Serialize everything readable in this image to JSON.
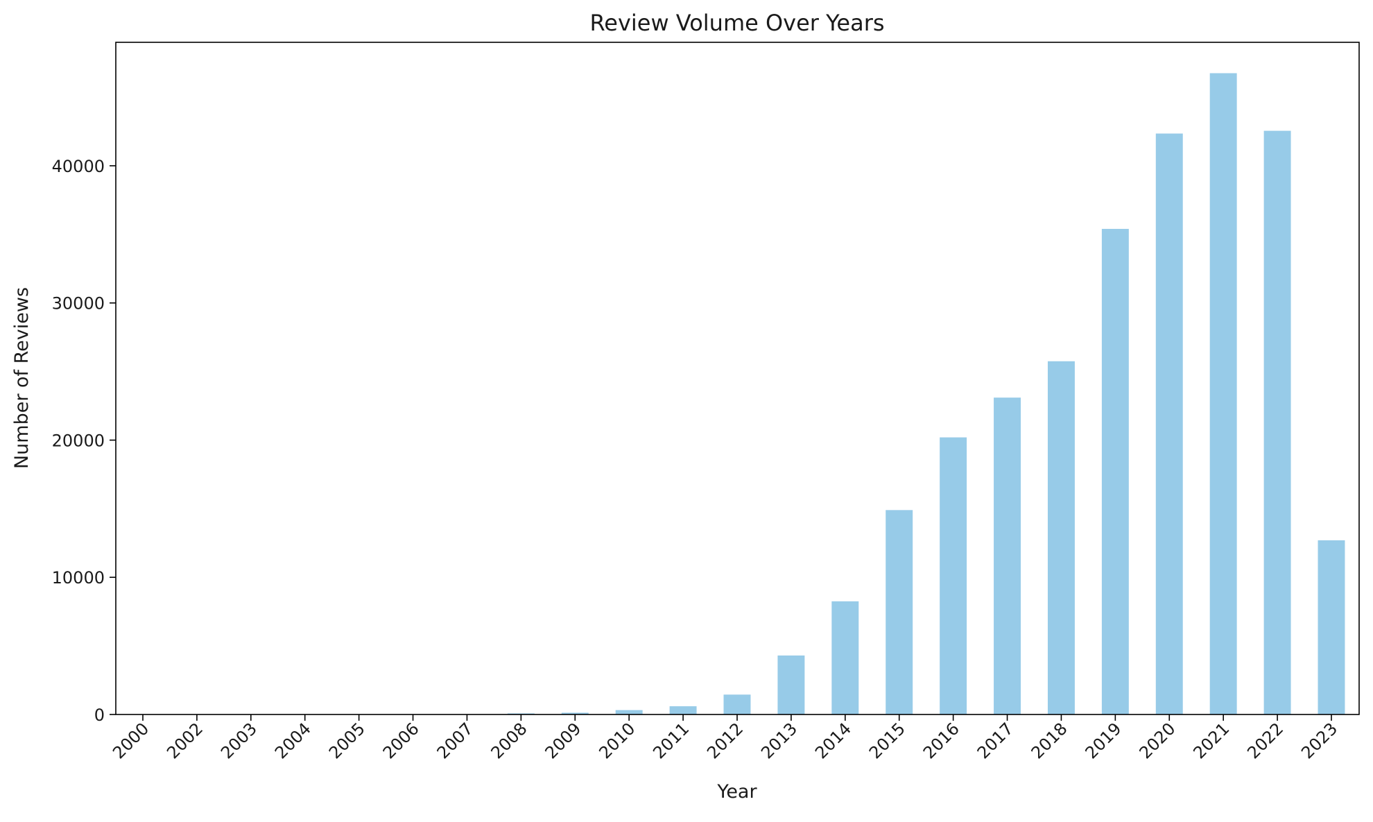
{
  "chart_data": {
    "type": "bar",
    "title": "Review Volume Over Years",
    "xlabel": "Year",
    "ylabel": "Number of Reviews",
    "categories": [
      "2000",
      "2002",
      "2003",
      "2004",
      "2005",
      "2006",
      "2007",
      "2008",
      "2009",
      "2010",
      "2011",
      "2012",
      "2013",
      "2014",
      "2015",
      "2016",
      "2017",
      "2018",
      "2019",
      "2020",
      "2021",
      "2022",
      "2023"
    ],
    "values": [
      2,
      2,
      3,
      4,
      5,
      8,
      20,
      80,
      130,
      320,
      600,
      1450,
      4300,
      8250,
      14900,
      20200,
      23100,
      25750,
      35400,
      42350,
      46750,
      42550,
      12700
    ],
    "ylim": [
      0,
      49000
    ],
    "yticks": [
      0,
      10000,
      20000,
      30000,
      40000
    ],
    "bar_color": "#97cbe8",
    "grid": false,
    "legend": "none"
  }
}
